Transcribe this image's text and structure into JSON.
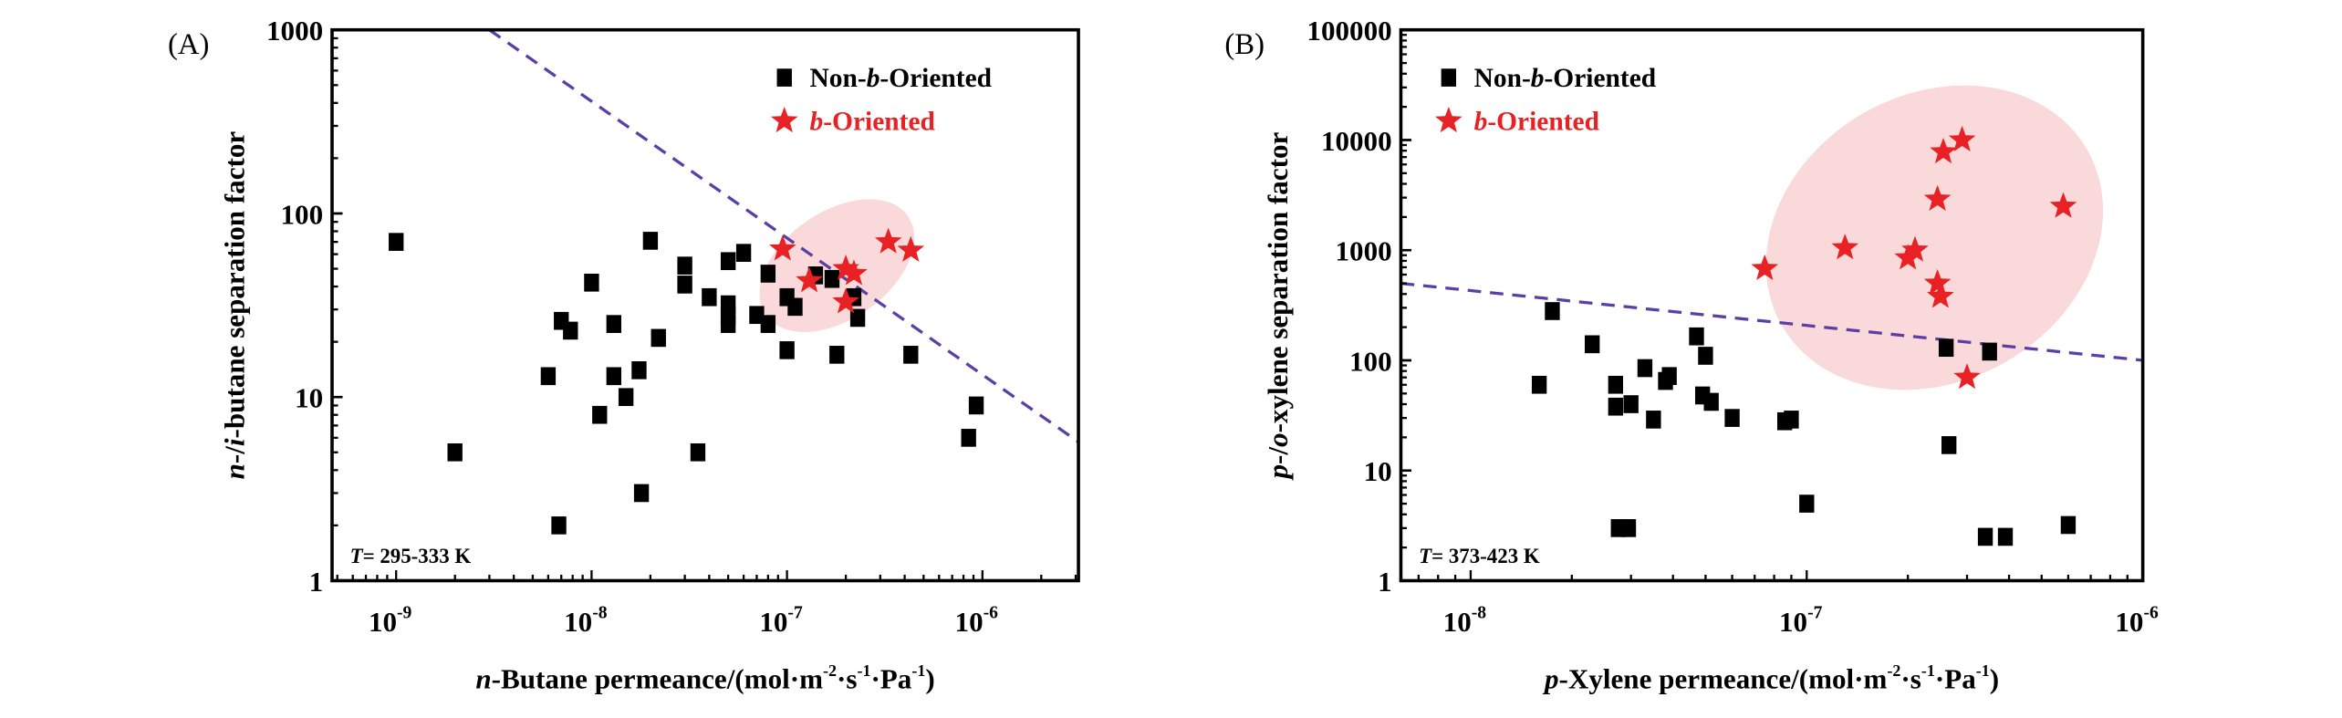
{
  "chart_data": [
    {
      "type": "scatter",
      "panel_label": "(A)",
      "xlabel": "n-Butane permeance/(mol·m⁻²·s⁻¹·Pa⁻¹)",
      "xlabel_parts": {
        "italic": "n",
        "rest": "-Butane permeance/(mol·m",
        "sup1": "-2",
        "mid1": "·s",
        "sup2": "-1",
        "mid2": "·Pa",
        "sup3": "-1",
        "end": ")"
      },
      "ylabel": "n-/i-butane separation factor",
      "ylabel_parts": {
        "i1": "n",
        "t1": "-/",
        "i2": "i",
        "t2": "-butane separation factor"
      },
      "xscale": "log",
      "yscale": "log",
      "xlim": [
        4.7e-10,
        3.1e-06
      ],
      "ylim": [
        1,
        1000
      ],
      "xticks": [
        {
          "v": 1e-09,
          "base": "10",
          "exp": "-9"
        },
        {
          "v": 1e-08,
          "base": "10",
          "exp": "-8"
        },
        {
          "v": 1e-07,
          "base": "10",
          "exp": "-7"
        },
        {
          "v": 1e-06,
          "base": "10",
          "exp": "-6"
        }
      ],
      "yticks": [
        {
          "v": 1,
          "label": "1"
        },
        {
          "v": 10,
          "label": "10"
        },
        {
          "v": 100,
          "label": "100"
        },
        {
          "v": 1000,
          "label": "1000"
        }
      ],
      "annotation": {
        "italic": "T",
        "text": "= 295-333 K"
      },
      "legend_position": "top-right",
      "series": [
        {
          "name": "Non-b-Oriented",
          "name_parts": [
            "Non-",
            "b",
            "-Oriented"
          ],
          "marker": "square",
          "color": "#000000",
          "points": [
            [
              1e-09,
              70
            ],
            [
              2e-09,
              5
            ],
            [
              6e-09,
              13
            ],
            [
              6.8e-09,
              2
            ],
            [
              7e-09,
              26
            ],
            [
              7.8e-09,
              23
            ],
            [
              1e-08,
              42
            ],
            [
              1.1e-08,
              8
            ],
            [
              1.3e-08,
              25
            ],
            [
              1.3e-08,
              13
            ],
            [
              1.5e-08,
              10
            ],
            [
              1.75e-08,
              14
            ],
            [
              1.8e-08,
              3
            ],
            [
              2e-08,
              71
            ],
            [
              2.2e-08,
              21
            ],
            [
              3e-08,
              52
            ],
            [
              3e-08,
              41
            ],
            [
              3.5e-08,
              5
            ],
            [
              4e-08,
              35
            ],
            [
              5e-08,
              55
            ],
            [
              5e-08,
              32
            ],
            [
              5e-08,
              28
            ],
            [
              5e-08,
              25
            ],
            [
              6e-08,
              61
            ],
            [
              7e-08,
              28
            ],
            [
              8e-08,
              47
            ],
            [
              8e-08,
              25
            ],
            [
              1e-07,
              35
            ],
            [
              1e-07,
              18
            ],
            [
              1.1e-07,
              31
            ],
            [
              1.4e-07,
              46
            ],
            [
              1.7e-07,
              44
            ],
            [
              1.8e-07,
              17
            ],
            [
              2.2e-07,
              35
            ],
            [
              2.3e-07,
              27
            ],
            [
              4.3e-07,
              17
            ],
            [
              8.5e-07,
              6
            ],
            [
              9.3e-07,
              9
            ]
          ]
        },
        {
          "name": "b-Oriented",
          "name_parts": [
            "",
            "b",
            "-Oriented"
          ],
          "marker": "star",
          "color": "#e82124",
          "points": [
            [
              9.5e-08,
              64
            ],
            [
              1.3e-07,
              43
            ],
            [
              2e-07,
              50
            ],
            [
              2.2e-07,
              47
            ],
            [
              2e-07,
              33
            ],
            [
              3.3e-07,
              70
            ],
            [
              4.3e-07,
              63
            ]
          ]
        }
      ],
      "upper_bound_line": {
        "style": "dashed",
        "color": "#5b3ea6",
        "from": [
          3e-09,
          1000
        ],
        "to": [
          3.1e-06,
          5.7
        ]
      },
      "highlight_ellipse": {
        "color": "#f9d9d9",
        "center": [
          1.8e-07,
          52
        ],
        "label": "b-Oriented region"
      }
    },
    {
      "type": "scatter",
      "panel_label": "(B)",
      "xlabel": "p-Xylene permeance/(mol·m⁻²·s⁻¹·Pa⁻¹)",
      "xlabel_parts": {
        "italic": "p",
        "rest": "-Xylene permeance/(mol·m",
        "sup1": "-2",
        "mid1": "·s",
        "sup2": "-1",
        "mid2": "·Pa",
        "sup3": "-1",
        "end": ")"
      },
      "ylabel": "p-/o-xylene separation factor",
      "ylabel_parts": {
        "i1": "p",
        "t1": "-/",
        "i2": "o",
        "t2": "-xylene separation factor"
      },
      "xscale": "log",
      "yscale": "log",
      "xlim": [
        6.2e-09,
        1e-06
      ],
      "ylim": [
        1,
        100000
      ],
      "xticks": [
        {
          "v": 1e-08,
          "base": "10",
          "exp": "-8"
        },
        {
          "v": 1e-07,
          "base": "10",
          "exp": "-7"
        },
        {
          "v": 1e-06,
          "base": "10",
          "exp": "-6"
        }
      ],
      "yticks": [
        {
          "v": 1,
          "label": "1"
        },
        {
          "v": 10,
          "label": "10"
        },
        {
          "v": 100,
          "label": "100"
        },
        {
          "v": 1000,
          "label": "1000"
        },
        {
          "v": 10000,
          "label": "10000"
        },
        {
          "v": 100000,
          "label": "100000"
        }
      ],
      "annotation": {
        "italic": "T",
        "text": "= 373-423 K"
      },
      "legend_position": "top-left",
      "series": [
        {
          "name": "Non-b-Oriented",
          "name_parts": [
            "Non-",
            "b",
            "-Oriented"
          ],
          "marker": "square",
          "color": "#000000",
          "points": [
            [
              1.6e-08,
              60
            ],
            [
              1.75e-08,
              280
            ],
            [
              2.3e-08,
              140
            ],
            [
              2.7e-08,
              38
            ],
            [
              2.7e-08,
              60
            ],
            [
              2.75e-08,
              3
            ],
            [
              2.95e-08,
              3
            ],
            [
              3e-08,
              40
            ],
            [
              3.3e-08,
              85
            ],
            [
              3.5e-08,
              29
            ],
            [
              3.8e-08,
              65
            ],
            [
              3.9e-08,
              72
            ],
            [
              4.7e-08,
              165
            ],
            [
              4.9e-08,
              48
            ],
            [
              5e-08,
              110
            ],
            [
              5.2e-08,
              42
            ],
            [
              6e-08,
              30
            ],
            [
              8.6e-08,
              28
            ],
            [
              9e-08,
              29
            ],
            [
              1e-07,
              5
            ],
            [
              2.6e-07,
              130
            ],
            [
              2.65e-07,
              17
            ],
            [
              3.4e-07,
              2.5
            ],
            [
              3.5e-07,
              120
            ],
            [
              3.9e-07,
              2.5
            ],
            [
              6e-07,
              3.2
            ]
          ]
        },
        {
          "name": "b-Oriented",
          "name_parts": [
            "",
            "b",
            "-Oriented"
          ],
          "marker": "star",
          "color": "#e82124",
          "points": [
            [
              7.5e-08,
              680
            ],
            [
              1.3e-07,
              1050
            ],
            [
              2e-07,
              850
            ],
            [
              2.1e-07,
              1000
            ],
            [
              2.45e-07,
              2900
            ],
            [
              2.45e-07,
              500
            ],
            [
              2.5e-07,
              380
            ],
            [
              2.55e-07,
              7800
            ],
            [
              2.9e-07,
              10000
            ],
            [
              3e-07,
              70
            ],
            [
              5.8e-07,
              2500
            ]
          ]
        }
      ],
      "upper_bound_line": {
        "style": "dashed",
        "color": "#5b3ea6",
        "from": [
          6.2e-09,
          500
        ],
        "to": [
          1e-06,
          100
        ]
      },
      "highlight_ellipse": {
        "color": "#f9d9d9",
        "center": [
          2.4e-07,
          1300
        ],
        "label": "b-Oriented region"
      }
    }
  ]
}
